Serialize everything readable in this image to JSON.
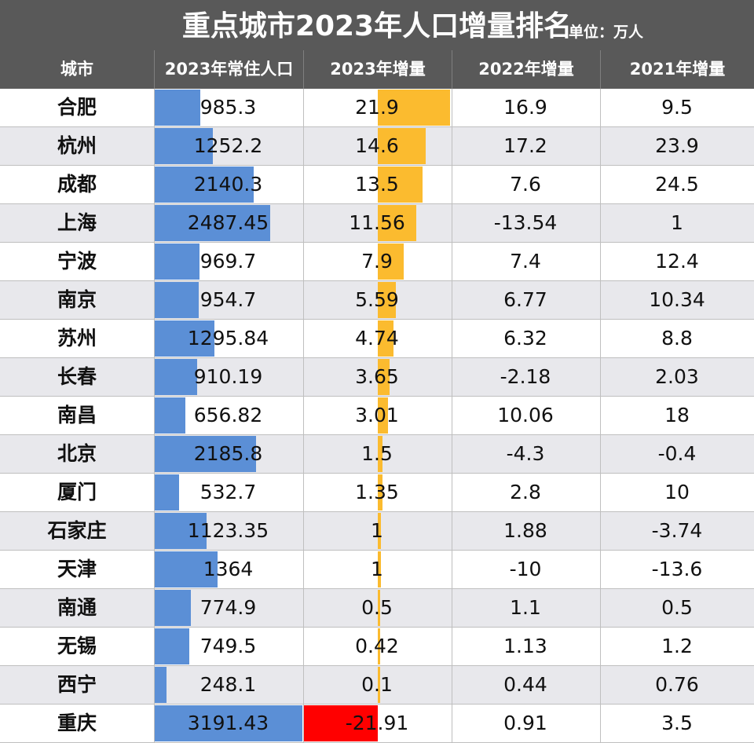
{
  "title": "重点城市2023年人口增量排名",
  "unit": "单位：万人",
  "colors": {
    "header": "#595959",
    "pop_bar": "#5b8fd6",
    "pos_bar": "#fbbb2f",
    "neg_bar": "#ff0000",
    "alt_row": "#e8e8ec"
  },
  "chart_data": {
    "type": "table",
    "columns": [
      "城市",
      "2023年常住人口",
      "2023年增量",
      "2022年增量",
      "2021年增量"
    ],
    "rows": [
      {
        "city": "合肥",
        "pop2023": "985.3",
        "inc2023": "21.9",
        "inc2022": "16.9",
        "inc2021": "9.5"
      },
      {
        "city": "杭州",
        "pop2023": "1252.2",
        "inc2023": "14.6",
        "inc2022": "17.2",
        "inc2021": "23.9"
      },
      {
        "city": "成都",
        "pop2023": "2140.3",
        "inc2023": "13.5",
        "inc2022": "7.6",
        "inc2021": "24.5"
      },
      {
        "city": "上海",
        "pop2023": "2487.45",
        "inc2023": "11.56",
        "inc2022": "-13.54",
        "inc2021": "1"
      },
      {
        "city": "宁波",
        "pop2023": "969.7",
        "inc2023": "7.9",
        "inc2022": "7.4",
        "inc2021": "12.4"
      },
      {
        "city": "南京",
        "pop2023": "954.7",
        "inc2023": "5.59",
        "inc2022": "6.77",
        "inc2021": "10.34"
      },
      {
        "city": "苏州",
        "pop2023": "1295.84",
        "inc2023": "4.74",
        "inc2022": "6.32",
        "inc2021": "8.8"
      },
      {
        "city": "长春",
        "pop2023": "910.19",
        "inc2023": "3.65",
        "inc2022": "-2.18",
        "inc2021": "2.03"
      },
      {
        "city": "南昌",
        "pop2023": "656.82",
        "inc2023": "3.01",
        "inc2022": "10.06",
        "inc2021": "18"
      },
      {
        "city": "北京",
        "pop2023": "2185.8",
        "inc2023": "1.5",
        "inc2022": "-4.3",
        "inc2021": "-0.4"
      },
      {
        "city": "厦门",
        "pop2023": "532.7",
        "inc2023": "1.35",
        "inc2022": "2.8",
        "inc2021": "10"
      },
      {
        "city": "石家庄",
        "pop2023": "1123.35",
        "inc2023": "1",
        "inc2022": "1.88",
        "inc2021": "-3.74"
      },
      {
        "city": "天津",
        "pop2023": "1364",
        "inc2023": "1",
        "inc2022": "-10",
        "inc2021": "-13.6"
      },
      {
        "city": "南通",
        "pop2023": "774.9",
        "inc2023": "0.5",
        "inc2022": "1.1",
        "inc2021": "0.5"
      },
      {
        "city": "无锡",
        "pop2023": "749.5",
        "inc2023": "0.42",
        "inc2022": "1.13",
        "inc2021": "1.2"
      },
      {
        "city": "西宁",
        "pop2023": "248.1",
        "inc2023": "0.1",
        "inc2022": "0.44",
        "inc2021": "0.76"
      },
      {
        "city": "重庆",
        "pop2023": "3191.43",
        "inc2023": "-21.91",
        "inc2022": "0.91",
        "inc2021": "3.5"
      }
    ]
  }
}
